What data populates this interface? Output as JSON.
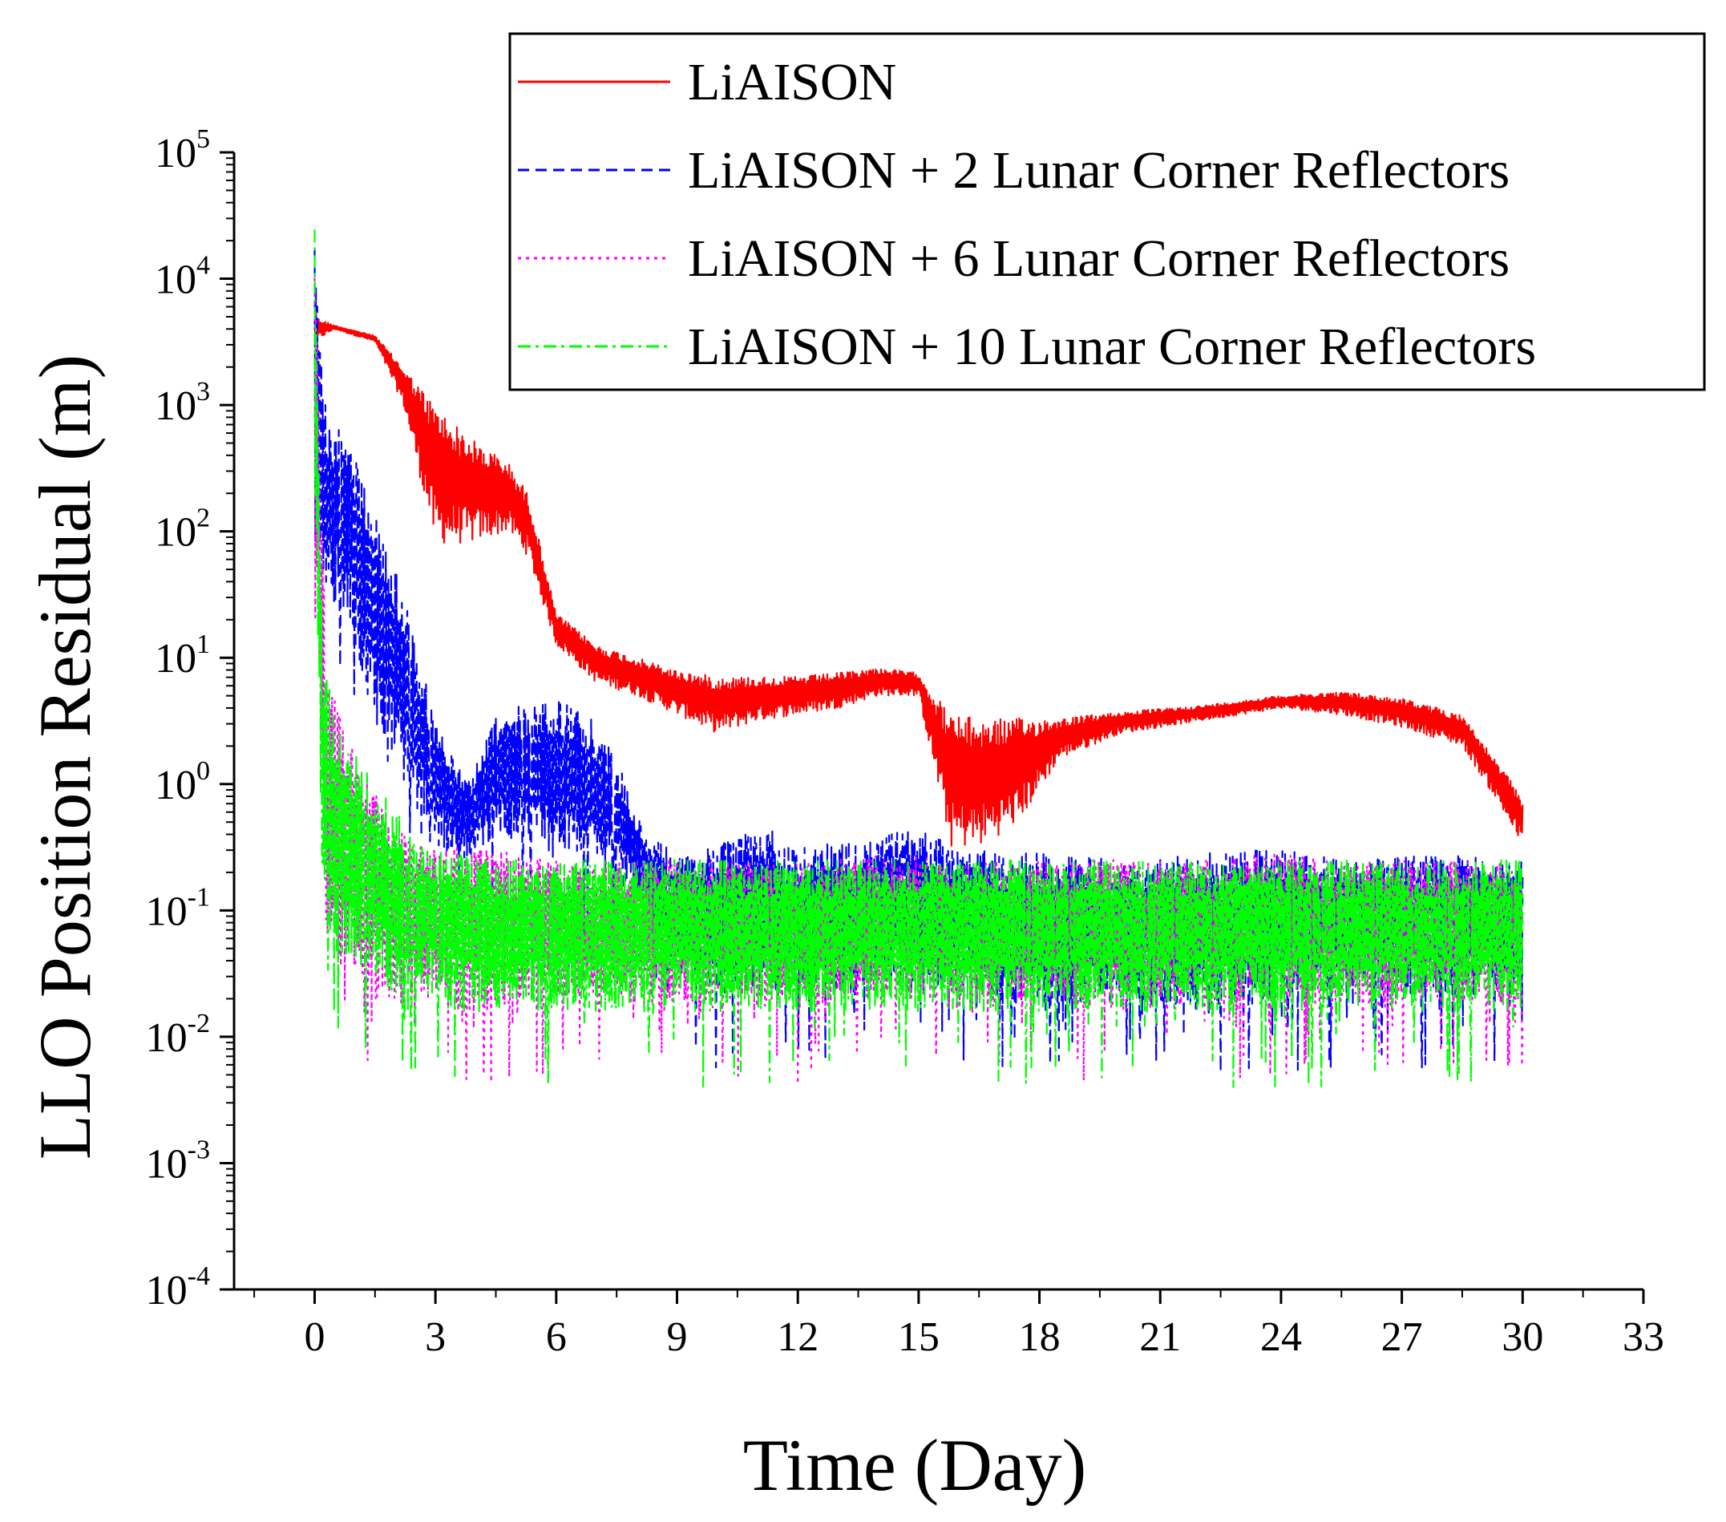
{
  "chart_data": {
    "type": "line",
    "title": "",
    "xlabel": "Time (Day)",
    "ylabel": "LLO Position Residual (m)",
    "xlim": [
      -2,
      33
    ],
    "ylim_log10": [
      -4,
      5
    ],
    "yscale": "log",
    "x_ticks": [
      0,
      3,
      6,
      9,
      12,
      15,
      18,
      21,
      24,
      27,
      30,
      33
    ],
    "y_ticks": [
      {
        "base": "10",
        "exp": "5"
      },
      {
        "base": "10",
        "exp": "4"
      },
      {
        "base": "10",
        "exp": "3"
      },
      {
        "base": "10",
        "exp": "2"
      },
      {
        "base": "10",
        "exp": "1"
      },
      {
        "base": "10",
        "exp": "0"
      },
      {
        "base": "10",
        "exp": "-1"
      },
      {
        "base": "10",
        "exp": "-2"
      },
      {
        "base": "10",
        "exp": "-3"
      },
      {
        "base": "10",
        "exp": "-4"
      }
    ],
    "y_tick_values_log10": [
      5,
      4,
      3,
      2,
      1,
      0,
      -1,
      -2,
      -3,
      -4
    ],
    "legend_position": "top-right",
    "series": [
      {
        "name": "LiAISON",
        "color": "#ff0000",
        "dash": "solid",
        "envelope_x": [
          0,
          0.5,
          1.5,
          2.2,
          3,
          3.8,
          4.8,
          5.3,
          6,
          7,
          8,
          9,
          10,
          11,
          12,
          13,
          14,
          15,
          15.8,
          16.5,
          17.5,
          18.5,
          20,
          22,
          24,
          25.5,
          27,
          28.5,
          29.3,
          30
        ],
        "envelope_upper_log10": [
          3.7,
          3.63,
          3.55,
          3.3,
          3.0,
          2.75,
          2.55,
          2.3,
          1.35,
          1.1,
          1.0,
          0.9,
          0.85,
          0.85,
          0.85,
          0.88,
          0.92,
          0.88,
          0.55,
          0.52,
          0.52,
          0.52,
          0.57,
          0.62,
          0.7,
          0.73,
          0.68,
          0.55,
          0.2,
          -0.1
        ],
        "envelope_lower_log10": [
          3.5,
          3.6,
          3.5,
          3.0,
          1.9,
          1.9,
          2.0,
          1.8,
          1.1,
          0.8,
          0.7,
          0.55,
          0.4,
          0.5,
          0.55,
          0.6,
          0.7,
          0.7,
          -0.5,
          -0.5,
          -0.3,
          0.2,
          0.4,
          0.5,
          0.6,
          0.55,
          0.45,
          0.3,
          -0.1,
          -0.5
        ]
      },
      {
        "name": "LiAISON + 2 Lunar Corner Reflectors",
        "color": "#0000ff",
        "dash": "dashed",
        "envelope_x": [
          0,
          0.3,
          0.8,
          1.5,
          2.2,
          3,
          3.8,
          4.5,
          5.2,
          6,
          6.8,
          7.5,
          8.2,
          9,
          10,
          11,
          12,
          13,
          14,
          15,
          16,
          18,
          20,
          22,
          24,
          26,
          28,
          30
        ],
        "envelope_upper_log10": [
          4.4,
          2.9,
          2.75,
          2.2,
          1.5,
          0.5,
          0.0,
          0.55,
          0.65,
          0.68,
          0.55,
          0.2,
          -0.4,
          -0.55,
          -0.5,
          -0.3,
          -0.5,
          -0.45,
          -0.4,
          -0.35,
          -0.5,
          -0.55,
          -0.6,
          -0.55,
          -0.5,
          -0.6,
          -0.55,
          -0.6
        ],
        "envelope_lower_log10": [
          2.0,
          1.5,
          1.3,
          0.5,
          0.0,
          -0.5,
          -0.6,
          -0.4,
          -0.5,
          -0.6,
          -0.65,
          -0.7,
          -1.0,
          -1.5,
          -1.7,
          -1.6,
          -1.7,
          -1.7,
          -1.6,
          -1.7,
          -1.6,
          -1.8,
          -1.7,
          -1.8,
          -1.7,
          -1.6,
          -1.7,
          -1.6
        ]
      },
      {
        "name": "LiAISON + 6 Lunar Corner Reflectors",
        "color": "#ff00ff",
        "dash": "dotted",
        "envelope_x": [
          0,
          0.3,
          1,
          2,
          3,
          4,
          6,
          8,
          10,
          12,
          14,
          16,
          18,
          20,
          22,
          24,
          26,
          28,
          30
        ],
        "envelope_upper_log10": [
          4.3,
          0.8,
          0.3,
          -0.3,
          -0.5,
          -0.5,
          -0.6,
          -0.6,
          -0.6,
          -0.6,
          -0.55,
          -0.6,
          -0.6,
          -0.6,
          -0.6,
          -0.55,
          -0.6,
          -0.6,
          -0.6
        ],
        "envelope_lower_log10": [
          2.0,
          -1.3,
          -1.6,
          -1.8,
          -1.7,
          -1.8,
          -1.7,
          -1.8,
          -1.7,
          -1.8,
          -1.7,
          -1.8,
          -1.7,
          -1.8,
          -1.8,
          -1.7,
          -1.8,
          -1.7,
          -1.8
        ]
      },
      {
        "name": "LiAISON + 10 Lunar Corner Reflectors",
        "color": "#00ff00",
        "dash": "dash-dot",
        "envelope_x": [
          0,
          0.2,
          0.6,
          1.5,
          2.5,
          3.5,
          5,
          7,
          9,
          11,
          13,
          15,
          17,
          19,
          21,
          23,
          25,
          27,
          29,
          30
        ],
        "envelope_upper_log10": [
          4.4,
          1.0,
          0.5,
          0.0,
          -0.4,
          -0.55,
          -0.6,
          -0.6,
          -0.6,
          -0.6,
          -0.6,
          -0.6,
          -0.6,
          -0.6,
          -0.6,
          -0.6,
          -0.6,
          -0.6,
          -0.6,
          -0.6
        ],
        "envelope_lower_log10": [
          2.5,
          -1.0,
          -1.4,
          -1.6,
          -1.7,
          -1.8,
          -1.8,
          -1.8,
          -1.8,
          -1.8,
          -1.8,
          -1.8,
          -1.8,
          -1.8,
          -1.8,
          -1.8,
          -1.8,
          -1.8,
          -1.8,
          -1.8
        ]
      }
    ]
  }
}
